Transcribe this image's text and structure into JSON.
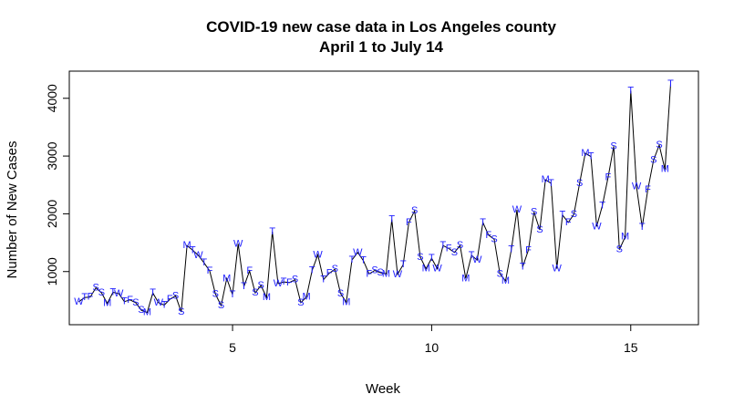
{
  "chart_data": {
    "type": "line",
    "title": "COVID-19 new case data in Los Angeles county",
    "subtitle": "April 1 to July 14",
    "xlabel": "Week",
    "ylabel": "Number of New Cases",
    "xlim": [
      0.9,
      16.7
    ],
    "ylim": [
      80,
      4470
    ],
    "x_ticks": [
      5,
      10,
      15
    ],
    "y_ticks": [
      1000,
      2000,
      3000,
      4000
    ],
    "x_start": 1.14,
    "x_step": 0.1429,
    "series": [
      {
        "labels": [
          "W",
          "T",
          "F",
          "S",
          "S",
          "M",
          "T",
          "W",
          "T",
          "F",
          "S",
          "S",
          "M",
          "T",
          "W",
          "T",
          "F",
          "S",
          "S",
          "M",
          "T",
          "W",
          "T",
          "F",
          "S",
          "S",
          "M",
          "T",
          "W",
          "T",
          "F",
          "S",
          "S",
          "M",
          "T",
          "W",
          "T",
          "F",
          "S",
          "S",
          "M",
          "T",
          "W",
          "T",
          "F",
          "S",
          "S",
          "M",
          "T",
          "W",
          "T",
          "F",
          "S",
          "S",
          "M",
          "T",
          "W",
          "T",
          "F",
          "S",
          "S",
          "M",
          "T",
          "W",
          "T",
          "F",
          "S",
          "S",
          "M",
          "T",
          "W",
          "T",
          "F",
          "S",
          "S",
          "M",
          "T",
          "W",
          "T",
          "F",
          "S",
          "S",
          "M",
          "T",
          "W",
          "T",
          "F",
          "S",
          "S",
          "M",
          "T",
          "W",
          "T",
          "F",
          "S",
          "S",
          "M",
          "T",
          "W",
          "T",
          "F",
          "S",
          "S",
          "M",
          "T"
        ],
        "values": [
          478,
          550,
          560,
          720,
          630,
          450,
          640,
          620,
          480,
          510,
          460,
          330,
          290,
          630,
          460,
          420,
          520,
          580,
          300,
          1450,
          1370,
          1280,
          1150,
          1010,
          610,
          410,
          880,
          600,
          1480,
          740,
          1010,
          630,
          760,
          550,
          1690,
          790,
          820,
          810,
          860,
          460,
          560,
          1020,
          1290,
          860,
          970,
          1040,
          620,
          470,
          1200,
          1330,
          1190,
          960,
          1020,
          980,
          960,
          1900,
          950,
          1120,
          1850,
          2050,
          1250,
          1050,
          1230,
          1050,
          1450,
          1400,
          1330,
          1450,
          880,
          1280,
          1200,
          1850,
          1630,
          1560,
          960,
          840,
          1380,
          2070,
          1080,
          1370,
          2030,
          1720,
          2590,
          2530,
          1050,
          1980,
          1850,
          1990,
          2530,
          3050,
          2990,
          1780,
          2140,
          2630,
          3170,
          1380,
          1600,
          4130,
          2470,
          1770,
          2420,
          2930,
          3190,
          2770,
          4250
        ]
      }
    ]
  }
}
